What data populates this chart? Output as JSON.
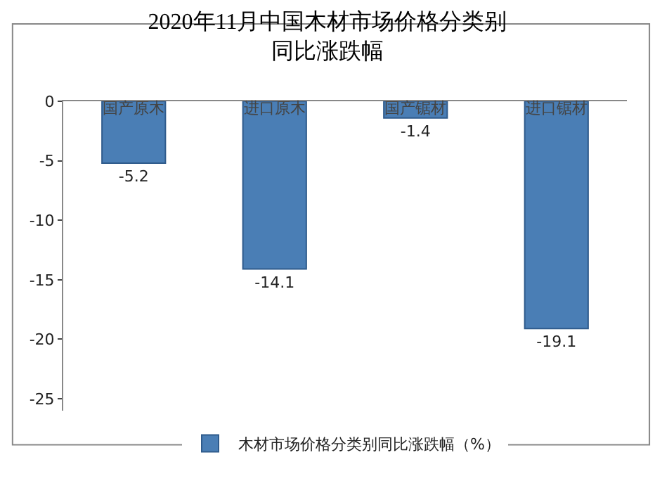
{
  "chart_data": {
    "type": "bar",
    "title": "2020年11月中国木材市场价格分类别同比涨跌幅",
    "categories": [
      "国产原木",
      "进口原木",
      "国产锯材",
      "进口锯材"
    ],
    "series": [
      {
        "name": "木材市场价格分类别同比涨跌幅（%）",
        "color": "#4a7eb5",
        "values": [
          -5.2,
          -14.1,
          -1.4,
          -19.1
        ]
      }
    ],
    "ylim": [
      -26,
      0
    ],
    "yticks": [
      0,
      -5,
      -10,
      -15,
      -20,
      -25
    ],
    "grid": false,
    "legend": "bottom",
    "data_labels": true
  }
}
